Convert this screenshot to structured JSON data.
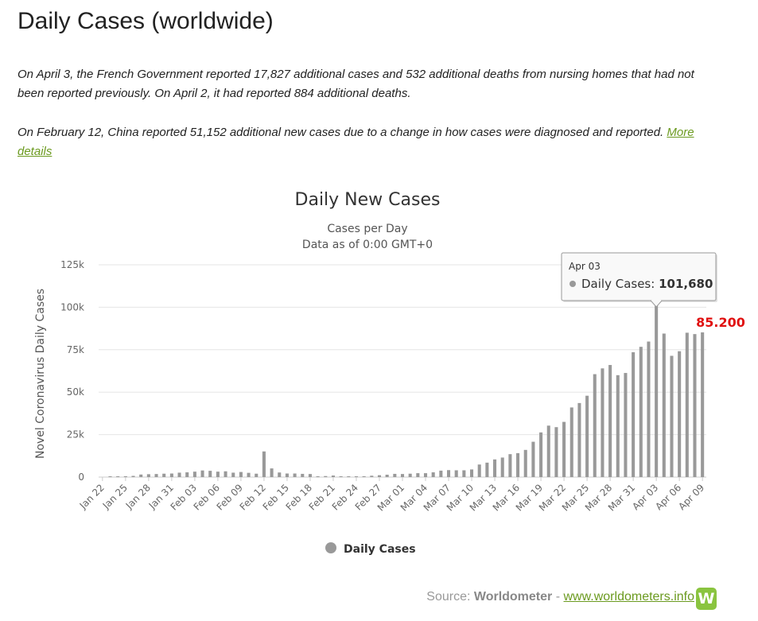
{
  "page": {
    "title": "Daily Cases (worldwide)",
    "note1": "On April 3, the French Government reported 17,827 additional cases and 532 additional deaths from nursing homes that had not been reported previously. On April 2, it had reported 884 additional deaths.",
    "note2": "On February 12, China reported 51,152 additional new cases due to a change in how cases were diagnosed and reported.",
    "more_details": "More details"
  },
  "chart_data": {
    "type": "bar",
    "title": "Daily New Cases",
    "subtitle_line1": "Cases per Day",
    "subtitle_line2": "Data as of 0:00 GMT+0",
    "ylabel": "Novel Coronavirus Daily Cases",
    "xlabel": "",
    "ylim": [
      0,
      125000
    ],
    "yticks": [
      0,
      25000,
      50000,
      75000,
      100000,
      125000
    ],
    "ytick_labels": [
      "0",
      "25k",
      "50k",
      "75k",
      "100k",
      "125k"
    ],
    "grid": true,
    "bar_color": "#999999",
    "categories": [
      "Jan 22",
      "Jan 23",
      "Jan 24",
      "Jan 25",
      "Jan 26",
      "Jan 27",
      "Jan 28",
      "Jan 29",
      "Jan 30",
      "Jan 31",
      "Feb 01",
      "Feb 02",
      "Feb 03",
      "Feb 04",
      "Feb 05",
      "Feb 06",
      "Feb 07",
      "Feb 08",
      "Feb 09",
      "Feb 10",
      "Feb 11",
      "Feb 12",
      "Feb 13",
      "Feb 14",
      "Feb 15",
      "Feb 16",
      "Feb 17",
      "Feb 18",
      "Feb 19",
      "Feb 20",
      "Feb 21",
      "Feb 22",
      "Feb 23",
      "Feb 24",
      "Feb 25",
      "Feb 26",
      "Feb 27",
      "Feb 28",
      "Feb 29",
      "Mar 01",
      "Mar 02",
      "Mar 03",
      "Mar 04",
      "Mar 05",
      "Mar 06",
      "Mar 07",
      "Mar 08",
      "Mar 09",
      "Mar 10",
      "Mar 11",
      "Mar 12",
      "Mar 13",
      "Mar 14",
      "Mar 15",
      "Mar 16",
      "Mar 17",
      "Mar 18",
      "Mar 19",
      "Mar 20",
      "Mar 21",
      "Mar 22",
      "Mar 23",
      "Mar 24",
      "Mar 25",
      "Mar 26",
      "Mar 27",
      "Mar 28",
      "Mar 29",
      "Mar 30",
      "Mar 31",
      "Apr 01",
      "Apr 02",
      "Apr 03",
      "Apr 04",
      "Apr 05",
      "Apr 06",
      "Apr 07",
      "Apr 08",
      "Apr 09"
    ],
    "xtick_labels": [
      "Jan 22",
      "Jan 25",
      "Jan 28",
      "Jan 31",
      "Feb 03",
      "Feb 06",
      "Feb 09",
      "Feb 12",
      "Feb 15",
      "Feb 18",
      "Feb 21",
      "Feb 24",
      "Feb 27",
      "Mar 01",
      "Mar 04",
      "Mar 07",
      "Mar 10",
      "Mar 13",
      "Mar 16",
      "Mar 19",
      "Mar 22",
      "Mar 25",
      "Mar 28",
      "Mar 31",
      "Apr 03",
      "Apr 06",
      "Apr 09"
    ],
    "series": [
      {
        "name": "Daily Cases",
        "values": [
          0,
          100,
          300,
          500,
          700,
          1500,
          1700,
          1800,
          2000,
          2100,
          2600,
          2800,
          3200,
          3900,
          3700,
          3200,
          3400,
          2600,
          3000,
          2500,
          2000,
          15100,
          5100,
          2700,
          2100,
          2100,
          1900,
          1800,
          400,
          600,
          900,
          300,
          200,
          400,
          500,
          800,
          1100,
          1400,
          1900,
          1800,
          2000,
          2300,
          2300,
          2800,
          3800,
          4100,
          4000,
          4000,
          4500,
          7400,
          8500,
          10400,
          11500,
          13500,
          14100,
          16000,
          20800,
          26300,
          30300,
          29400,
          32500,
          41000,
          43600,
          47900,
          60600,
          64000,
          66000,
          60000,
          61300,
          73500,
          76700,
          79800,
          101680,
          84500,
          71400,
          74100,
          85000,
          84200,
          85200
        ]
      }
    ],
    "legend": {
      "position": "bottom-center",
      "label": "Daily Cases"
    },
    "tooltip": {
      "date": "Apr 03",
      "label": "Daily Cases:",
      "value": "101,680"
    },
    "last_value_label": "85.200"
  },
  "source": {
    "prefix": "Source:",
    "name": "Worldometer",
    "sep": "-",
    "link": "www.worldometers.info",
    "logo_letter": "W"
  },
  "colors": {
    "bars": "#999999",
    "accent": "#6b9a1f",
    "last_label": "#e01010",
    "logo": "#8ac43f"
  }
}
